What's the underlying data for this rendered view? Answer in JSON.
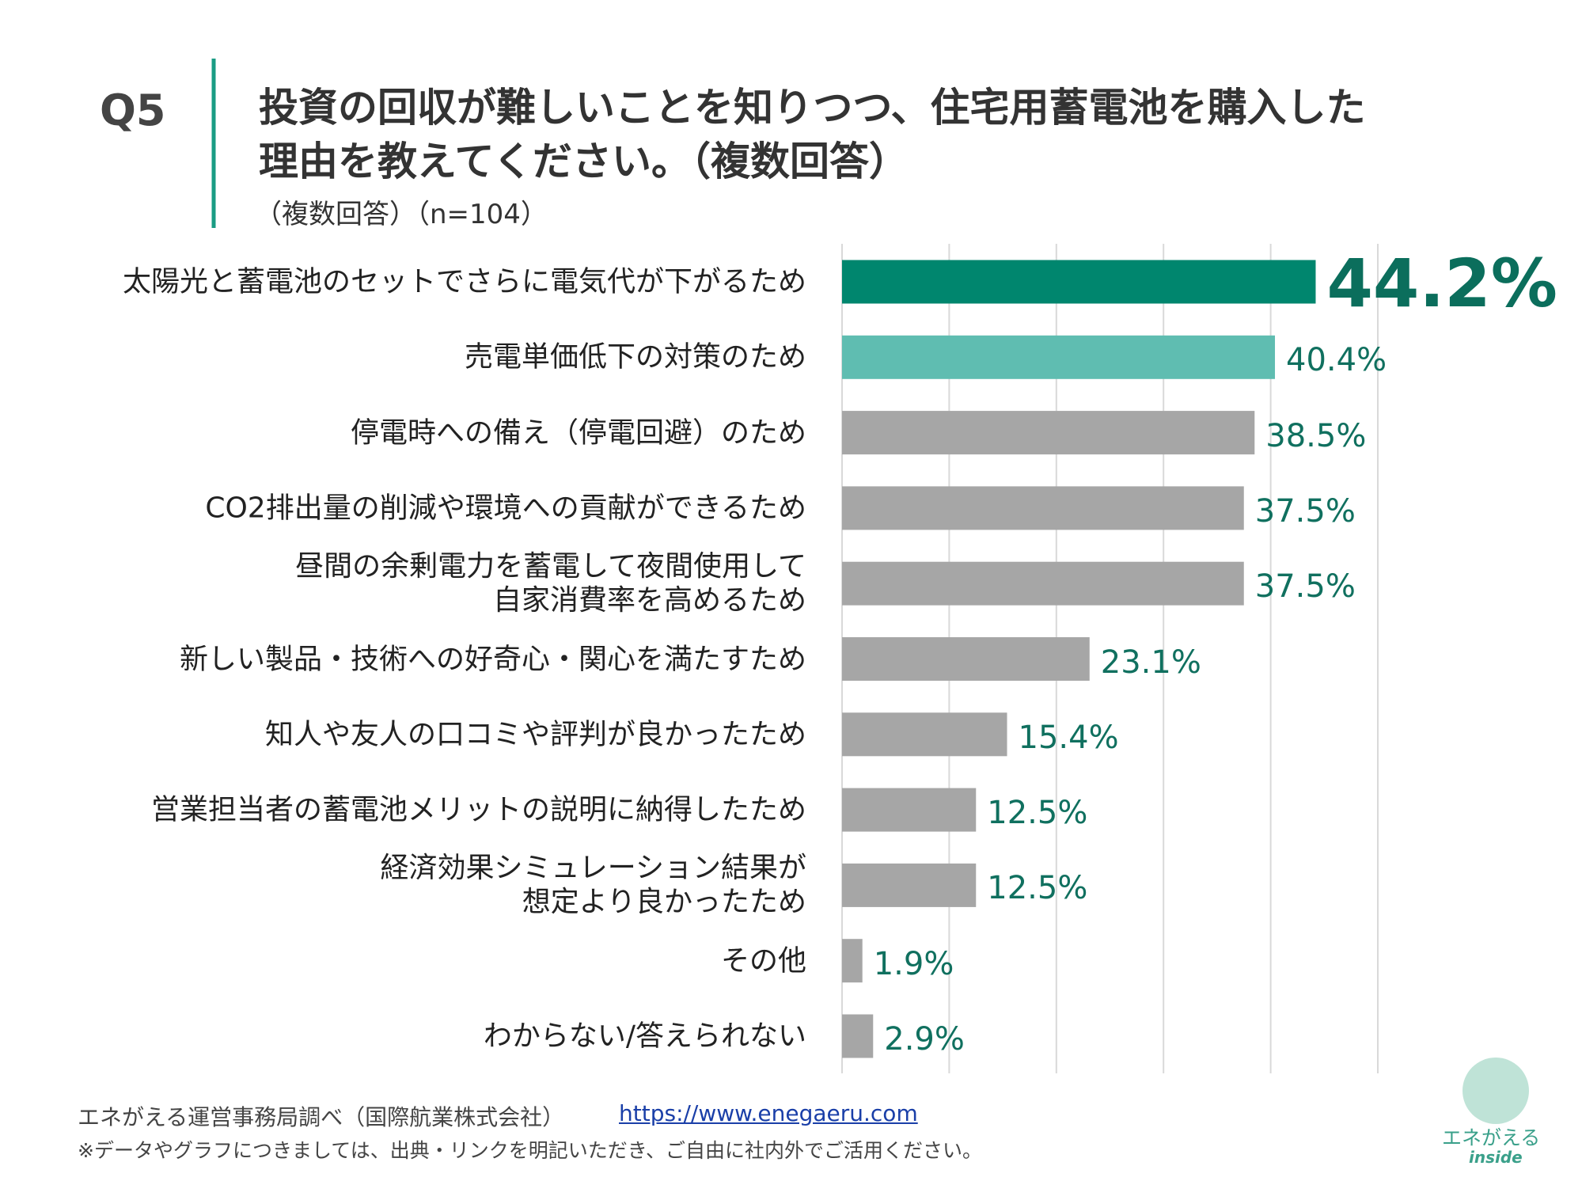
{
  "header": {
    "label": "Q5",
    "subtitle": "（複数回答）（n=104）"
  },
  "chart_data": {
    "type": "barh",
    "title": "投資の回収が難しいことを知りつつ、住宅用蓄電池を購入した\n理由を教えてください。（複数回答）",
    "categories": [
      "太陽光と蓄電池のセットでさらに電気代が下がるため",
      "売電単価低下の対策のため",
      "停電時への備え（停電回避）のため",
      "CO2排出量の削減や環境への貢献ができるため",
      "昼間の余剰電力を蓄電して夜間使用して\n自家消費率を高めるため",
      "新しい製品・技術への好奇心・関心を満たすため",
      "知人や友人の口コミや評判が良かったため",
      "営業担当者の蓄電池メリットの説明に納得したため",
      "経済効果シミュレーション結果が\n想定より良かったため",
      "その他",
      "わからない/答えられない"
    ],
    "values": [
      44.2,
      40.4,
      38.5,
      37.5,
      37.5,
      23.1,
      15.4,
      12.5,
      12.5,
      1.9,
      2.9
    ],
    "value_labels": [
      "44.2%",
      "40.4%",
      "38.5%",
      "37.5%",
      "37.5%",
      "23.1%",
      "15.4%",
      "12.5%",
      "12.5%",
      "1.9%",
      "2.9%"
    ],
    "colors": [
      "#00866e",
      "#5fbdb1",
      "#a6a6a6",
      "#a6a6a6",
      "#a6a6a6",
      "#a6a6a6",
      "#a6a6a6",
      "#a6a6a6",
      "#a6a6a6",
      "#a6a6a6",
      "#a6a6a6"
    ],
    "xlim": [
      0,
      50
    ],
    "xticks": [
      0,
      10,
      20,
      30,
      40,
      50
    ],
    "grid": true
  },
  "footer": {
    "source": "エネがえる運営事務局調べ（国際航業株式会社）",
    "link": "https://www.enegaeru.com",
    "note": "※データやグラフにつきましては、出典・リンクを明記いただき、ご自由に社内外でご活用ください。"
  },
  "logo": {
    "name": "エネがえる",
    "sub": "inside"
  }
}
